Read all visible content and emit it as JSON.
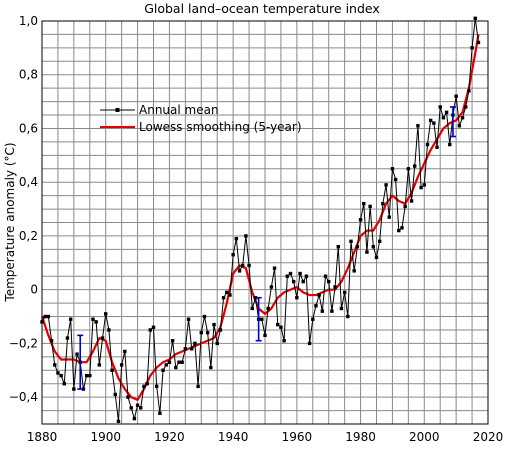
{
  "chart_data": {
    "type": "line",
    "title": "Global land–ocean temperature index",
    "xlabel": "",
    "ylabel": "Temperature anomaly (°C)",
    "xlim": [
      1880,
      2020
    ],
    "ylim": [
      -0.5,
      1.0
    ],
    "x_ticks": [
      1880,
      1900,
      1920,
      1940,
      1960,
      1980,
      2000,
      2020
    ],
    "y_ticks": [
      -0.4,
      -0.2,
      0,
      0.2,
      0.4,
      0.6,
      0.8,
      1.0
    ],
    "y_tick_labels": [
      "−0,4",
      "−0,2",
      "0",
      "0,2",
      "0,4",
      "0,6",
      "0,8",
      "1,0"
    ],
    "grid": true,
    "legend_position": "upper-left",
    "series": [
      {
        "name": "Annual mean",
        "color": "#000000",
        "marker": "square",
        "x": [
          1880,
          1881,
          1882,
          1883,
          1884,
          1885,
          1886,
          1887,
          1888,
          1889,
          1890,
          1891,
          1892,
          1893,
          1894,
          1895,
          1896,
          1897,
          1898,
          1899,
          1900,
          1901,
          1902,
          1903,
          1904,
          1905,
          1906,
          1907,
          1908,
          1909,
          1910,
          1911,
          1912,
          1913,
          1914,
          1915,
          1916,
          1917,
          1918,
          1919,
          1920,
          1921,
          1922,
          1923,
          1924,
          1925,
          1926,
          1927,
          1928,
          1929,
          1930,
          1931,
          1932,
          1933,
          1934,
          1935,
          1936,
          1937,
          1938,
          1939,
          1940,
          1941,
          1942,
          1943,
          1944,
          1945,
          1946,
          1947,
          1948,
          1949,
          1950,
          1951,
          1952,
          1953,
          1954,
          1955,
          1956,
          1957,
          1958,
          1959,
          1960,
          1961,
          1962,
          1963,
          1964,
          1965,
          1966,
          1967,
          1968,
          1969,
          1970,
          1971,
          1972,
          1973,
          1974,
          1975,
          1976,
          1977,
          1978,
          1979,
          1980,
          1981,
          1982,
          1983,
          1984,
          1985,
          1986,
          1987,
          1988,
          1989,
          1990,
          1991,
          1992,
          1993,
          1994,
          1995,
          1996,
          1997,
          1998,
          1999,
          2000,
          2001,
          2002,
          2003,
          2004,
          2005,
          2006,
          2007,
          2008,
          2009,
          2010,
          2011,
          2012,
          2013,
          2014,
          2015,
          2016,
          2017
        ],
        "values": [
          -0.12,
          -0.1,
          -0.1,
          -0.19,
          -0.28,
          -0.31,
          -0.32,
          -0.35,
          -0.18,
          -0.11,
          -0.37,
          -0.24,
          -0.27,
          -0.37,
          -0.32,
          -0.32,
          -0.11,
          -0.12,
          -0.28,
          -0.18,
          -0.09,
          -0.15,
          -0.3,
          -0.39,
          -0.49,
          -0.28,
          -0.23,
          -0.4,
          -0.44,
          -0.48,
          -0.43,
          -0.44,
          -0.36,
          -0.35,
          -0.15,
          -0.14,
          -0.36,
          -0.46,
          -0.3,
          -0.28,
          -0.27,
          -0.19,
          -0.29,
          -0.27,
          -0.27,
          -0.22,
          -0.11,
          -0.22,
          -0.2,
          -0.36,
          -0.16,
          -0.1,
          -0.16,
          -0.29,
          -0.13,
          -0.2,
          -0.15,
          -0.03,
          -0.01,
          -0.02,
          0.13,
          0.19,
          0.07,
          0.09,
          0.2,
          0.09,
          -0.07,
          -0.03,
          -0.11,
          -0.11,
          -0.17,
          -0.07,
          0.01,
          0.08,
          -0.13,
          -0.14,
          -0.19,
          0.05,
          0.06,
          0.03,
          -0.03,
          0.06,
          0.03,
          0.05,
          -0.2,
          -0.11,
          -0.06,
          -0.02,
          -0.08,
          0.05,
          0.03,
          -0.08,
          0.01,
          0.16,
          -0.07,
          -0.01,
          -0.1,
          0.18,
          0.07,
          0.16,
          0.26,
          0.32,
          0.14,
          0.31,
          0.16,
          0.12,
          0.18,
          0.32,
          0.39,
          0.27,
          0.45,
          0.41,
          0.22,
          0.23,
          0.31,
          0.45,
          0.33,
          0.46,
          0.61,
          0.38,
          0.39,
          0.54,
          0.63,
          0.62,
          0.53,
          0.68,
          0.64,
          0.66,
          0.54,
          0.65,
          0.72,
          0.61,
          0.64,
          0.68,
          0.74,
          0.9,
          1.01,
          0.92
        ]
      },
      {
        "name": "Lowess smoothing (5-year)",
        "color": "#e00000",
        "x": [
          1880,
          1882,
          1884,
          1886,
          1888,
          1890,
          1892,
          1894,
          1896,
          1898,
          1900,
          1902,
          1904,
          1906,
          1908,
          1910,
          1912,
          1914,
          1916,
          1918,
          1920,
          1922,
          1924,
          1926,
          1928,
          1930,
          1932,
          1934,
          1936,
          1938,
          1940,
          1942,
          1944,
          1946,
          1948,
          1950,
          1952,
          1954,
          1956,
          1958,
          1960,
          1962,
          1964,
          1966,
          1968,
          1970,
          1972,
          1974,
          1976,
          1978,
          1980,
          1982,
          1984,
          1986,
          1988,
          1990,
          1992,
          1994,
          1996,
          1998,
          2000,
          2002,
          2004,
          2006,
          2008,
          2010,
          2012,
          2014,
          2016,
          2017
        ],
        "values": [
          -0.1,
          -0.17,
          -0.23,
          -0.26,
          -0.26,
          -0.26,
          -0.27,
          -0.27,
          -0.23,
          -0.18,
          -0.19,
          -0.27,
          -0.33,
          -0.37,
          -0.4,
          -0.41,
          -0.37,
          -0.32,
          -0.29,
          -0.27,
          -0.26,
          -0.24,
          -0.23,
          -0.22,
          -0.21,
          -0.2,
          -0.19,
          -0.18,
          -0.14,
          -0.05,
          0.06,
          0.09,
          0.08,
          -0.01,
          -0.07,
          -0.09,
          -0.07,
          -0.03,
          -0.01,
          0.0,
          0.01,
          -0.01,
          -0.02,
          -0.02,
          -0.01,
          0.0,
          0.0,
          0.03,
          0.08,
          0.14,
          0.2,
          0.22,
          0.22,
          0.26,
          0.32,
          0.35,
          0.33,
          0.32,
          0.36,
          0.42,
          0.47,
          0.52,
          0.56,
          0.6,
          0.62,
          0.63,
          0.66,
          0.75,
          0.88,
          0.95
        ]
      }
    ],
    "error_bars": [
      {
        "x": 1892,
        "low": -0.37,
        "high": -0.17,
        "color": "#0000cc"
      },
      {
        "x": 1948,
        "low": -0.19,
        "high": -0.03,
        "color": "#0000cc"
      },
      {
        "x": 2009,
        "low": 0.57,
        "high": 0.68,
        "color": "#0000cc"
      }
    ]
  }
}
